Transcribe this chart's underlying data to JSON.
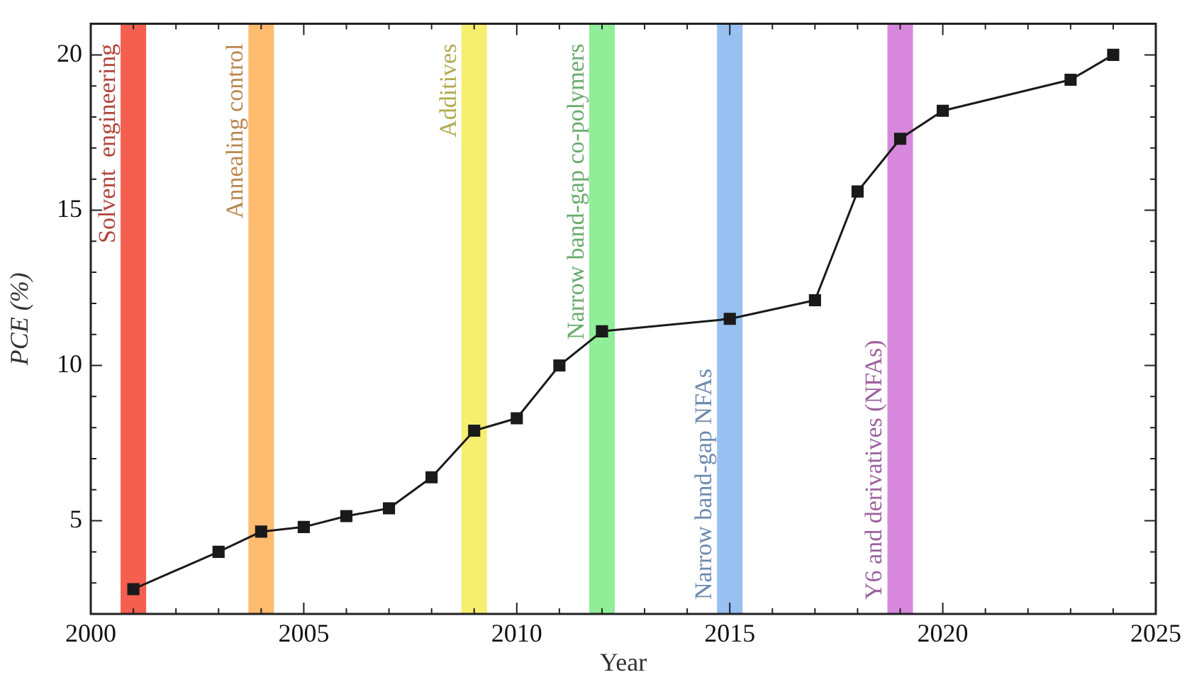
{
  "chart_data": {
    "type": "line",
    "xlabel": "Year",
    "ylabel": "PCE (%)",
    "x": [
      2001,
      2003,
      2004,
      2005,
      2006,
      2007,
      2008,
      2009,
      2010,
      2011,
      2012,
      2015,
      2017,
      2018,
      2019,
      2020,
      2023,
      2024
    ],
    "series": [
      {
        "color": "#1a1a1a",
        "values": [
          2.8,
          4.0,
          4.65,
          4.8,
          5.15,
          5.4,
          6.4,
          7.9,
          8.3,
          10.0,
          11.1,
          11.5,
          12.1,
          15.6,
          17.3,
          18.2,
          19.2,
          20.0
        ]
      }
    ],
    "xlim": [
      2000,
      2025
    ],
    "xticks": [
      2000,
      2005,
      2010,
      2015,
      2020,
      2025
    ],
    "ylim": [
      2,
      21
    ],
    "yticks": [
      5,
      10,
      15,
      20
    ],
    "bands": [
      {
        "axis": "x",
        "from": 2000.7,
        "to": 2001.3,
        "label": "Solvent  engineering",
        "color": "#f45f50"
      },
      {
        "axis": "x",
        "from": 2003.7,
        "to": 2004.3,
        "label": "Annealing control",
        "color": "#ffbb6e"
      },
      {
        "axis": "x",
        "from": 2008.7,
        "to": 2009.3,
        "label": "Additives",
        "color": "#f6ee6e"
      },
      {
        "axis": "x",
        "from": 2011.7,
        "to": 2012.3,
        "label": "Narrow band-gap co-polymers",
        "color": "#90ee98"
      },
      {
        "axis": "x",
        "from": 2014.7,
        "to": 2015.3,
        "label": "Narrow band-gap NFAs",
        "color": "#98c0f0"
      },
      {
        "axis": "x",
        "from": 2018.7,
        "to": 2019.3,
        "label": "Y6 and derivatives (NFAs)",
        "color": "#d888dc"
      }
    ],
    "marker": "square",
    "line_style": "solid",
    "grid": false,
    "legend": false
  }
}
